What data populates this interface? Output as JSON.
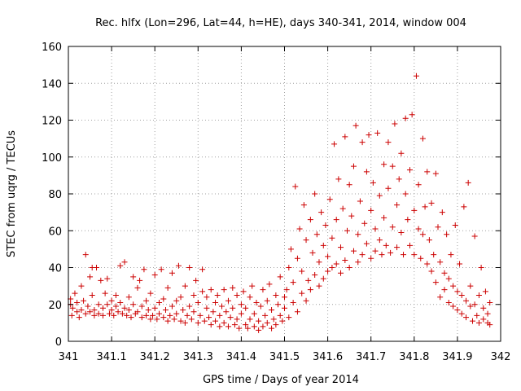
{
  "chart_data": {
    "type": "scatter",
    "title": "Rec. hlfx (Lon=296, Lat=44, h=HE), days 340-341, 2014, window 004",
    "xlabel": "GPS time / Days of year 2014",
    "ylabel": "STEC from uqrg / TECUs",
    "xlim": [
      341,
      342
    ],
    "ylim": [
      0,
      160
    ],
    "xticks": [
      341,
      341.1,
      341.2,
      341.3,
      341.4,
      341.5,
      341.6,
      341.7,
      341.8,
      341.9,
      342
    ],
    "xtick_labels": [
      "341",
      "341.1",
      "341.2",
      "341.3",
      "341.4",
      "341.5",
      "341.6",
      "341.7",
      "341.8",
      "341.9",
      "342"
    ],
    "yticks": [
      0,
      20,
      40,
      60,
      80,
      100,
      120,
      140,
      160
    ],
    "ytick_labels": [
      "0",
      "20",
      "40",
      "60",
      "80",
      "100",
      "120",
      "140",
      "160"
    ],
    "grid": true,
    "marker": "plus",
    "color": "#cc0000",
    "series": [
      {
        "points": [
          [
            341.005,
            20
          ],
          [
            341.005,
            23
          ],
          [
            341.008,
            14
          ],
          [
            341.01,
            18
          ],
          [
            341.015,
            26
          ],
          [
            341.02,
            16
          ],
          [
            341.02,
            21
          ],
          [
            341.025,
            13
          ],
          [
            341.03,
            17
          ],
          [
            341.03,
            30
          ],
          [
            341.035,
            22
          ],
          [
            341.04,
            47
          ],
          [
            341.04,
            15
          ],
          [
            341.045,
            19
          ],
          [
            341.05,
            35
          ],
          [
            341.05,
            16
          ],
          [
            341.055,
            40
          ],
          [
            341.055,
            25
          ],
          [
            341.06,
            17
          ],
          [
            341.06,
            14
          ],
          [
            341.065,
            40
          ],
          [
            341.07,
            20
          ],
          [
            341.07,
            15
          ],
          [
            341.075,
            33
          ],
          [
            341.08,
            18
          ],
          [
            341.08,
            14
          ],
          [
            341.085,
            26
          ],
          [
            341.09,
            34
          ],
          [
            341.09,
            20
          ],
          [
            341.095,
            15
          ],
          [
            341.1,
            22
          ],
          [
            341.1,
            17
          ],
          [
            341.105,
            14
          ],
          [
            341.11,
            25
          ],
          [
            341.11,
            19
          ],
          [
            341.115,
            16
          ],
          [
            341.12,
            41
          ],
          [
            341.12,
            21
          ],
          [
            341.125,
            15
          ],
          [
            341.13,
            18
          ],
          [
            341.13,
            43
          ],
          [
            341.135,
            14
          ],
          [
            341.14,
            24
          ],
          [
            341.14,
            17
          ],
          [
            341.145,
            13
          ],
          [
            341.15,
            35
          ],
          [
            341.15,
            20
          ],
          [
            341.155,
            15
          ],
          [
            341.16,
            29
          ],
          [
            341.16,
            16
          ],
          [
            341.165,
            33
          ],
          [
            341.17,
            13
          ],
          [
            341.17,
            19
          ],
          [
            341.175,
            39
          ],
          [
            341.18,
            14
          ],
          [
            341.18,
            22
          ],
          [
            341.185,
            17
          ],
          [
            341.19,
            12
          ],
          [
            341.19,
            26
          ],
          [
            341.195,
            14
          ],
          [
            341.2,
            36
          ],
          [
            341.2,
            18
          ],
          [
            341.205,
            12
          ],
          [
            341.21,
            21
          ],
          [
            341.21,
            15
          ],
          [
            341.215,
            39
          ],
          [
            341.22,
            13
          ],
          [
            341.22,
            23
          ],
          [
            341.225,
            17
          ],
          [
            341.23,
            11
          ],
          [
            341.23,
            29
          ],
          [
            341.235,
            14
          ],
          [
            341.24,
            37
          ],
          [
            341.24,
            19
          ],
          [
            341.245,
            12
          ],
          [
            341.25,
            22
          ],
          [
            341.25,
            15
          ],
          [
            341.255,
            41
          ],
          [
            341.26,
            11
          ],
          [
            341.26,
            24
          ],
          [
            341.265,
            17
          ],
          [
            341.27,
            10
          ],
          [
            341.27,
            30
          ],
          [
            341.275,
            14
          ],
          [
            341.28,
            40
          ],
          [
            341.28,
            19
          ],
          [
            341.285,
            12
          ],
          [
            341.29,
            25
          ],
          [
            341.29,
            16
          ],
          [
            341.295,
            33
          ],
          [
            341.3,
            10
          ],
          [
            341.3,
            21
          ],
          [
            341.305,
            14
          ],
          [
            341.31,
            39
          ],
          [
            341.31,
            27
          ],
          [
            341.315,
            11
          ],
          [
            341.32,
            18
          ],
          [
            341.32,
            24
          ],
          [
            341.325,
            13
          ],
          [
            341.33,
            9
          ],
          [
            341.33,
            28
          ],
          [
            341.335,
            16
          ],
          [
            341.34,
            21
          ],
          [
            341.34,
            11
          ],
          [
            341.345,
            25
          ],
          [
            341.35,
            8
          ],
          [
            341.35,
            14
          ],
          [
            341.355,
            19
          ],
          [
            341.36,
            28
          ],
          [
            341.36,
            10
          ],
          [
            341.365,
            16
          ],
          [
            341.37,
            22
          ],
          [
            341.37,
            8
          ],
          [
            341.375,
            13
          ],
          [
            341.38,
            29
          ],
          [
            341.38,
            18
          ],
          [
            341.385,
            9
          ],
          [
            341.39,
            25
          ],
          [
            341.39,
            12
          ],
          [
            341.395,
            7
          ],
          [
            341.4,
            20
          ],
          [
            341.4,
            15
          ],
          [
            341.405,
            27
          ],
          [
            341.41,
            9
          ],
          [
            341.41,
            18
          ],
          [
            341.415,
            7
          ],
          [
            341.42,
            24
          ],
          [
            341.42,
            12
          ],
          [
            341.425,
            30
          ],
          [
            341.43,
            8
          ],
          [
            341.43,
            15
          ],
          [
            341.435,
            21
          ],
          [
            341.44,
            6
          ],
          [
            341.44,
            11
          ],
          [
            341.445,
            19
          ],
          [
            341.45,
            28
          ],
          [
            341.45,
            8
          ],
          [
            341.455,
            14
          ],
          [
            341.46,
            22
          ],
          [
            341.46,
            10
          ],
          [
            341.465,
            31
          ],
          [
            341.47,
            7
          ],
          [
            341.47,
            17
          ],
          [
            341.475,
            12
          ],
          [
            341.48,
            25
          ],
          [
            341.48,
            9
          ],
          [
            341.485,
            20
          ],
          [
            341.49,
            14
          ],
          [
            341.49,
            35
          ],
          [
            341.495,
            11
          ],
          [
            341.5,
            24
          ],
          [
            341.5,
            18
          ],
          [
            341.505,
            28
          ],
          [
            341.51,
            13
          ],
          [
            341.51,
            40
          ],
          [
            341.515,
            50
          ],
          [
            341.52,
            21
          ],
          [
            341.52,
            32
          ],
          [
            341.525,
            84
          ],
          [
            341.53,
            16
          ],
          [
            341.53,
            45
          ],
          [
            341.535,
            61
          ],
          [
            341.54,
            26
          ],
          [
            341.54,
            38
          ],
          [
            341.545,
            74
          ],
          [
            341.55,
            22
          ],
          [
            341.55,
            55
          ],
          [
            341.555,
            33
          ],
          [
            341.56,
            66
          ],
          [
            341.56,
            28
          ],
          [
            341.565,
            48
          ],
          [
            341.57,
            80
          ],
          [
            341.57,
            36
          ],
          [
            341.575,
            58
          ],
          [
            341.58,
            30
          ],
          [
            341.58,
            43
          ],
          [
            341.585,
            70
          ],
          [
            341.59,
            34
          ],
          [
            341.59,
            52
          ],
          [
            341.595,
            63
          ],
          [
            341.6,
            38
          ],
          [
            341.6,
            46
          ],
          [
            341.605,
            77
          ],
          [
            341.61,
            40
          ],
          [
            341.61,
            56
          ],
          [
            341.615,
            107
          ],
          [
            341.62,
            42
          ],
          [
            341.62,
            66
          ],
          [
            341.625,
            88
          ],
          [
            341.63,
            37
          ],
          [
            341.63,
            51
          ],
          [
            341.635,
            72
          ],
          [
            341.64,
            111
          ],
          [
            341.64,
            44
          ],
          [
            341.645,
            60
          ],
          [
            341.65,
            85
          ],
          [
            341.65,
            40
          ],
          [
            341.655,
            68
          ],
          [
            341.66,
            95
          ],
          [
            341.66,
            49
          ],
          [
            341.665,
            117
          ],
          [
            341.67,
            43
          ],
          [
            341.67,
            58
          ],
          [
            341.675,
            76
          ],
          [
            341.68,
            108
          ],
          [
            341.68,
            47
          ],
          [
            341.685,
            64
          ],
          [
            341.69,
            92
          ],
          [
            341.69,
            53
          ],
          [
            341.695,
            112
          ],
          [
            341.7,
            45
          ],
          [
            341.7,
            71
          ],
          [
            341.705,
            86
          ],
          [
            341.71,
            49
          ],
          [
            341.71,
            61
          ],
          [
            341.715,
            113
          ],
          [
            341.72,
            79
          ],
          [
            341.72,
            55
          ],
          [
            341.725,
            47
          ],
          [
            341.73,
            96
          ],
          [
            341.73,
            67
          ],
          [
            341.735,
            52
          ],
          [
            341.74,
            108
          ],
          [
            341.74,
            83
          ],
          [
            341.745,
            48
          ],
          [
            341.75,
            62
          ],
          [
            341.75,
            95
          ],
          [
            341.755,
            118
          ],
          [
            341.76,
            74
          ],
          [
            341.76,
            51
          ],
          [
            341.765,
            88
          ],
          [
            341.77,
            102
          ],
          [
            341.77,
            59
          ],
          [
            341.775,
            47
          ],
          [
            341.78,
            121
          ],
          [
            341.78,
            80
          ],
          [
            341.785,
            66
          ],
          [
            341.79,
            93
          ],
          [
            341.79,
            52
          ],
          [
            341.795,
            123
          ],
          [
            341.8,
            71
          ],
          [
            341.8,
            47
          ],
          [
            341.805,
            144
          ],
          [
            341.81,
            61
          ],
          [
            341.81,
            85
          ],
          [
            341.815,
            45
          ],
          [
            341.82,
            110
          ],
          [
            341.82,
            58
          ],
          [
            341.825,
            73
          ],
          [
            341.83,
            42
          ],
          [
            341.83,
            92
          ],
          [
            341.835,
            55
          ],
          [
            341.84,
            38
          ],
          [
            341.84,
            75
          ],
          [
            341.845,
            47
          ],
          [
            341.85,
            32
          ],
          [
            341.85,
            91
          ],
          [
            341.855,
            62
          ],
          [
            341.86,
            43
          ],
          [
            341.86,
            24
          ],
          [
            341.865,
            70
          ],
          [
            341.87,
            37
          ],
          [
            341.87,
            28
          ],
          [
            341.875,
            58
          ],
          [
            341.88,
            34
          ],
          [
            341.88,
            21
          ],
          [
            341.885,
            47
          ],
          [
            341.89,
            30
          ],
          [
            341.89,
            19
          ],
          [
            341.895,
            63
          ],
          [
            341.9,
            27
          ],
          [
            341.9,
            17
          ],
          [
            341.905,
            42
          ],
          [
            341.91,
            25
          ],
          [
            341.91,
            15
          ],
          [
            341.915,
            73
          ],
          [
            341.92,
            22
          ],
          [
            341.92,
            13
          ],
          [
            341.925,
            86
          ],
          [
            341.93,
            19
          ],
          [
            341.93,
            30
          ],
          [
            341.935,
            11
          ],
          [
            341.94,
            20
          ],
          [
            341.94,
            57
          ],
          [
            341.945,
            14
          ],
          [
            341.95,
            10
          ],
          [
            341.95,
            25
          ],
          [
            341.955,
            40
          ],
          [
            341.96,
            18
          ],
          [
            341.96,
            12
          ],
          [
            341.965,
            27
          ],
          [
            341.97,
            15
          ],
          [
            341.97,
            10
          ],
          [
            341.975,
            9
          ],
          [
            341.975,
            21
          ]
        ]
      }
    ]
  }
}
